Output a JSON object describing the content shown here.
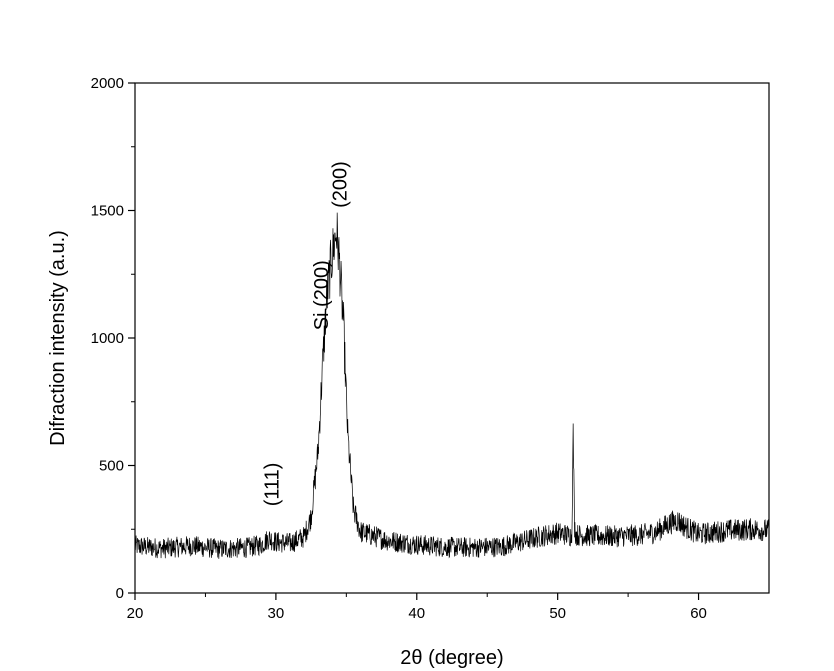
{
  "chart_data": {
    "type": "line",
    "title": "",
    "xlabel": "2θ (degree)",
    "ylabel": "Difraction intensity (a.u.)",
    "xlim": [
      20,
      65
    ],
    "ylim": [
      0,
      2000
    ],
    "x_ticks": [
      20,
      30,
      40,
      50,
      60
    ],
    "y_ticks": [
      0,
      500,
      1000,
      1500,
      2000
    ],
    "x_tick_labels": [
      "20",
      "30",
      "40",
      "50",
      "60"
    ],
    "y_tick_labels": [
      "0",
      "500",
      "1000",
      "1500",
      "2000"
    ],
    "grid": false,
    "legend": "none",
    "series": [
      {
        "color": "#000000",
        "x": [
          20,
          22,
          24,
          26,
          28,
          29,
          29.5,
          30,
          31,
          32,
          32.5,
          33,
          33.3,
          33.6,
          33.9,
          34.1,
          34.3,
          34.5,
          34.8,
          35.1,
          35.5,
          36,
          38,
          40,
          42,
          44,
          46,
          48,
          49,
          50,
          51,
          51.1,
          51.2,
          51.3,
          52,
          54,
          56,
          57,
          58,
          58.5,
          59,
          60,
          62,
          64,
          65
        ],
        "y": [
          185,
          175,
          185,
          172,
          178,
          190,
          215,
          200,
          195,
          220,
          300,
          560,
          880,
          1150,
          1290,
          1360,
          1420,
          1310,
          1050,
          620,
          330,
          240,
          205,
          190,
          180,
          178,
          182,
          210,
          225,
          235,
          225,
          620,
          260,
          228,
          225,
          222,
          228,
          240,
          275,
          285,
          262,
          230,
          245,
          250,
          245
        ]
      }
    ],
    "annotations": [
      {
        "text": "(200)",
        "x": 34.5,
        "y": 1510
      },
      {
        "text": "Si (200)",
        "x": 33.2,
        "y": 1030
      },
      {
        "text": "(111)",
        "x": 29.7,
        "y": 340
      }
    ]
  }
}
